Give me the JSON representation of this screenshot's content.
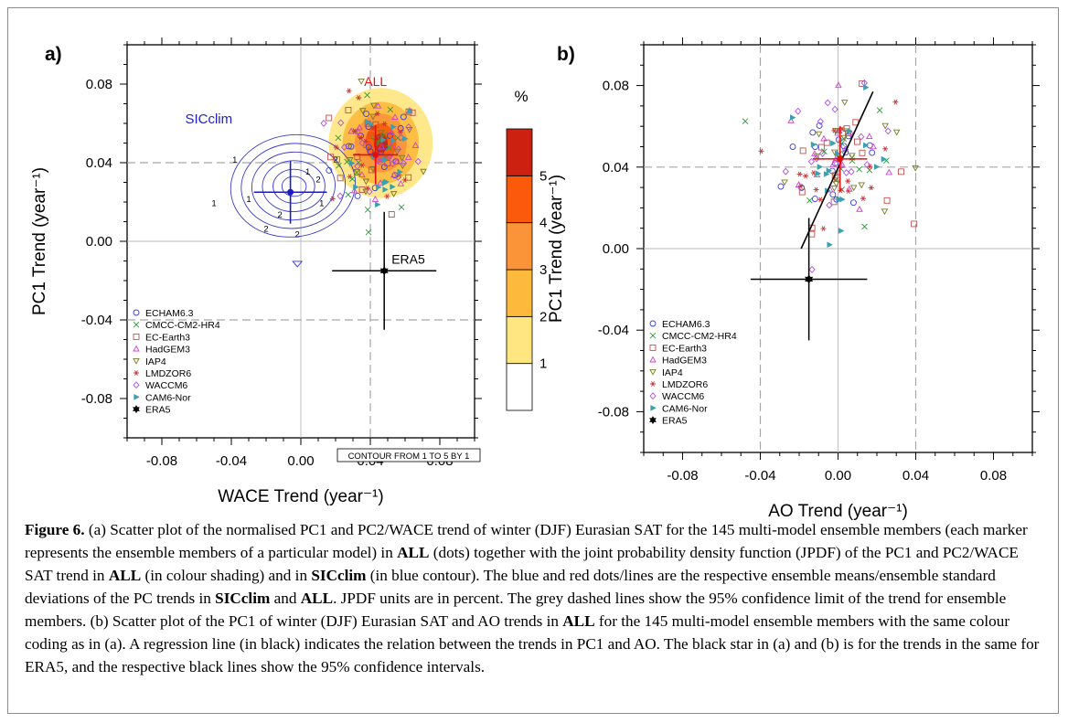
{
  "panel_a": {
    "label": "a)",
    "sicclim_label": "SICclim",
    "all_label": "ALL",
    "era5_label": "ERA5",
    "contour_note": "CONTOUR FROM 1 TO 5 BY 1",
    "colorbar_title": "%",
    "colorbar_ticks": [
      "1",
      "2",
      "3",
      "4",
      "5"
    ],
    "colorbar_colors": [
      "#ffffff",
      "#ffe680",
      "#fdb93c",
      "#fb9338",
      "#fa5a0a",
      "#cc2010"
    ],
    "contour_labels": [
      "1",
      "1",
      "2",
      "2",
      "1",
      "2",
      "1",
      "2",
      "2",
      "1"
    ]
  },
  "panel_b": {
    "label": "b)"
  },
  "legend": [
    {
      "name": "ECHAM6.3",
      "marker": "circle",
      "color": "#3b3bd6"
    },
    {
      "name": "CMCC-CM2-HR4",
      "marker": "cross",
      "color": "#2e9a3a"
    },
    {
      "name": "EC-Earth3",
      "marker": "square",
      "color": "#c0504d"
    },
    {
      "name": "HadGEM3",
      "marker": "triangle",
      "color": "#d040d0"
    },
    {
      "name": "IAP4",
      "marker": "triangle-down",
      "color": "#7a7a2a"
    },
    {
      "name": "LMDZOR6",
      "marker": "asterisk",
      "color": "#cc3333"
    },
    {
      "name": "WACCM6",
      "marker": "diamond",
      "color": "#b050e0"
    },
    {
      "name": "CAM6-Nor",
      "marker": "triangle-right",
      "color": "#3aa0b0"
    },
    {
      "name": "ERA5",
      "marker": "star",
      "color": "#000000"
    }
  ],
  "chart_data": [
    {
      "type": "scatter",
      "panel": "a",
      "xlabel": "WACE Trend (year⁻¹)",
      "ylabel": "PC1 Trend (year⁻¹)",
      "xlim": [
        -0.1,
        0.1
      ],
      "ylim": [
        -0.1,
        0.1
      ],
      "xticks": [
        "-0.08",
        "-0.04",
        "0.00",
        "0.04",
        "0.08"
      ],
      "yticks": [
        "-0.08",
        "-0.04",
        "0.00",
        "0.04",
        "0.08"
      ],
      "confidence_lines": {
        "x": [
          0.04
        ],
        "y": [
          0.04,
          -0.04
        ]
      },
      "ensemble_means": {
        "SICclim": {
          "x": -0.006,
          "y": 0.025,
          "x_sd": 0.021,
          "y_sd": 0.016,
          "color": "#1a1acc"
        },
        "ALL": {
          "x": 0.043,
          "y": 0.044,
          "x_sd": 0.013,
          "y_sd": 0.015,
          "color": "#e01010"
        }
      },
      "era5": {
        "x": 0.048,
        "y": -0.015,
        "x_err": 0.03,
        "y_err": 0.03
      },
      "markers_center": {
        "x": 0.043,
        "y": 0.044,
        "sx": 0.013,
        "sy": 0.015
      }
    },
    {
      "type": "scatter",
      "panel": "b",
      "xlabel": "AO Trend (year⁻¹)",
      "ylabel": "PC1 Trend (year⁻¹)",
      "xlim": [
        -0.1,
        0.1
      ],
      "ylim": [
        -0.1,
        0.1
      ],
      "xticks": [
        "-0.08",
        "-0.04",
        "0.00",
        "0.04",
        "0.08"
      ],
      "yticks": [
        "-0.08",
        "-0.04",
        "0.00",
        "0.04",
        "0.08"
      ],
      "confidence_lines": {
        "x": [
          -0.04,
          0.04
        ],
        "y": [
          0.04
        ]
      },
      "ensemble_means": {
        "ALL": {
          "x": 0.001,
          "y": 0.044,
          "x_sd": 0.014,
          "y_sd": 0.016,
          "color": "#e01010"
        }
      },
      "era5": {
        "x": -0.015,
        "y": -0.015,
        "x_err": 0.03,
        "y_err": 0.03
      },
      "regression_line": {
        "x": [
          -0.019,
          0.018
        ],
        "y": [
          0.0,
          0.077
        ]
      },
      "markers_center": {
        "x": 0.001,
        "y": 0.044,
        "sx": 0.014,
        "sy": 0.016
      }
    }
  ],
  "caption": {
    "fig_label": "Figure 6.",
    "t1": " (a) Scatter plot of the normalised PC1 and PC2/WACE trend of winter (DJF) Eurasian SAT for the 145 multi-model ensemble members (each marker represents the ensemble members of a particular model) in ",
    "b1": "ALL",
    "t2": " (dots) together with the joint probability density function (JPDF) of the PC1 and PC2/WACE SAT trend in ",
    "b2": "ALL",
    "t3": " (in colour shading) and in ",
    "b3": "SICclim",
    "t4": " (in blue contour). The blue and red dots/lines are the respective ensemble means/ensemble standard deviations of the PC trends in ",
    "b4": "SICclim",
    "t5": " and ",
    "b5": "ALL",
    "t6": ". JPDF units are in percent. The grey dashed lines show the 95% confidence limit of the trend for ensemble members. (b) Scatter plot of the PC1 of winter (DJF) Eurasian SAT and AO trends in ",
    "b6": "ALL",
    "t7": " for the 145 multi-model ensemble members with the same colour coding as in (a). A regression line (in black) indicates the relation between the trends in PC1 and AO. The black star in (a) and (b) is for the trends in the same for ERA5, and the respective black lines show the 95% confidence intervals."
  }
}
